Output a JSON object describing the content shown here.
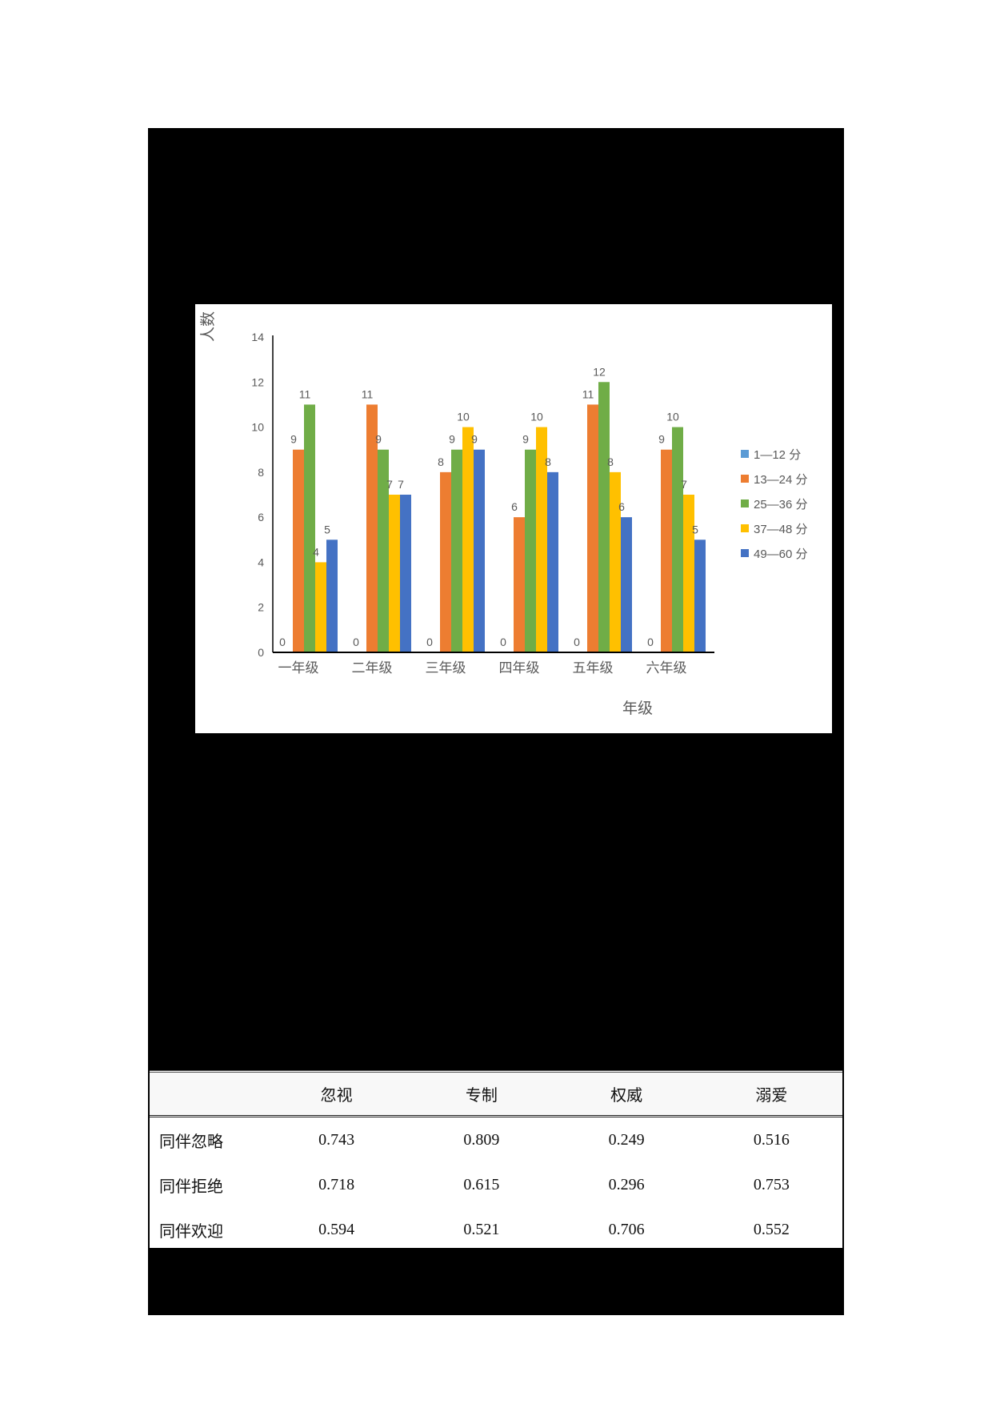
{
  "chart_data": {
    "type": "bar",
    "title": "",
    "xlabel": "年级",
    "ylabel": "人数",
    "ylim": [
      0,
      14
    ],
    "yticks": [
      0,
      2,
      4,
      6,
      8,
      10,
      12,
      14
    ],
    "grid": false,
    "legend_position": "right",
    "categories": [
      "一年级",
      "二年级",
      "三年级",
      "四年级",
      "五年级",
      "六年级"
    ],
    "series": [
      {
        "name": "1—12 分",
        "color": "#5B9BD5",
        "values": [
          0,
          0,
          0,
          0,
          0,
          0
        ]
      },
      {
        "name": "13—24 分",
        "color": "#ED7D31",
        "values": [
          9,
          11,
          8,
          6,
          11,
          9
        ]
      },
      {
        "name": "25—36 分",
        "color": "#70AD47",
        "values": [
          11,
          9,
          9,
          9,
          12,
          10
        ]
      },
      {
        "name": "37—48 分",
        "color": "#FFC000",
        "values": [
          4,
          7,
          10,
          10,
          8,
          7
        ]
      },
      {
        "name": "49—60 分",
        "color": "#4472C4",
        "values": [
          5,
          7,
          9,
          8,
          6,
          5
        ]
      }
    ],
    "data_labels": true
  },
  "table": {
    "headers": [
      "",
      "忽视",
      "专制",
      "权威",
      "溺爱"
    ],
    "rows": [
      {
        "label": "同伴忽略",
        "values": [
          "0.743",
          "0.809",
          "0.249",
          "0.516"
        ]
      },
      {
        "label": "同伴拒绝",
        "values": [
          "0.718",
          "0.615",
          "0.296",
          "0.753"
        ]
      },
      {
        "label": "同伴欢迎",
        "values": [
          "0.594",
          "0.521",
          "0.706",
          "0.552"
        ]
      }
    ]
  }
}
